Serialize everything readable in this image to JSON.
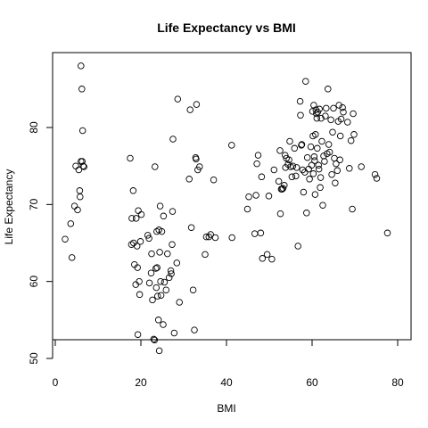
{
  "chart_data": {
    "type": "scatter",
    "title": "Life Expectancy vs  BMI",
    "xlabel": "BMI",
    "ylabel": "Life Expectancy",
    "xlim": [
      0,
      80
    ],
    "ylim": [
      50,
      90
    ],
    "xticks": [
      0,
      20,
      40,
      60,
      80
    ],
    "yticks": [
      50,
      60,
      70,
      80
    ],
    "grid": false,
    "marker": "open-circle",
    "series": [
      {
        "points": [
          [
            2.3,
            65.5
          ],
          [
            3.6,
            67.5
          ],
          [
            3.9,
            63.1
          ],
          [
            4.5,
            69.8
          ],
          [
            4.8,
            75.0
          ],
          [
            5.2,
            69.3
          ],
          [
            5.5,
            74.5
          ],
          [
            5.7,
            71.8
          ],
          [
            5.8,
            71.0
          ],
          [
            6.0,
            75.6
          ],
          [
            6.0,
            88.0
          ],
          [
            6.2,
            85.0
          ],
          [
            6.3,
            75.6
          ],
          [
            6.4,
            79.6
          ],
          [
            6.5,
            75.0
          ],
          [
            6.7,
            74.9
          ],
          [
            17.5,
            76.0
          ],
          [
            17.8,
            64.8
          ],
          [
            17.9,
            68.2
          ],
          [
            18.2,
            71.8
          ],
          [
            18.3,
            65.0
          ],
          [
            18.5,
            62.2
          ],
          [
            18.8,
            59.6
          ],
          [
            18.9,
            68.2
          ],
          [
            19.1,
            64.6
          ],
          [
            19.2,
            61.8
          ],
          [
            19.3,
            53.1
          ],
          [
            19.4,
            69.2
          ],
          [
            19.6,
            60.0
          ],
          [
            19.7,
            58.3
          ],
          [
            19.9,
            65.2
          ],
          [
            20.1,
            68.7
          ],
          [
            21.6,
            66.0
          ],
          [
            21.9,
            65.6
          ],
          [
            22.0,
            59.8
          ],
          [
            22.4,
            61.1
          ],
          [
            22.5,
            63.6
          ],
          [
            22.7,
            57.6
          ],
          [
            23.0,
            52.5
          ],
          [
            23.2,
            52.4
          ],
          [
            23.3,
            74.9
          ],
          [
            23.5,
            61.7
          ],
          [
            23.6,
            59.2
          ],
          [
            23.7,
            66.5
          ],
          [
            23.8,
            61.8
          ],
          [
            23.9,
            58.1
          ],
          [
            24.1,
            55.0
          ],
          [
            24.2,
            66.7
          ],
          [
            24.3,
            51.0
          ],
          [
            24.4,
            63.8
          ],
          [
            24.5,
            69.8
          ],
          [
            24.6,
            60.0
          ],
          [
            24.7,
            58.2
          ],
          [
            24.9,
            66.5
          ],
          [
            25.2,
            54.4
          ],
          [
            25.3,
            68.5
          ],
          [
            25.5,
            59.9
          ],
          [
            25.9,
            58.9
          ],
          [
            26.2,
            63.6
          ],
          [
            26.6,
            60.5
          ],
          [
            27.0,
            61.4
          ],
          [
            27.1,
            61.0
          ],
          [
            27.3,
            64.8
          ],
          [
            27.4,
            69.1
          ],
          [
            27.5,
            78.5
          ],
          [
            27.8,
            53.3
          ],
          [
            28.4,
            62.4
          ],
          [
            28.6,
            83.7
          ],
          [
            29.0,
            57.3
          ],
          [
            31.3,
            73.3
          ],
          [
            31.5,
            82.3
          ],
          [
            31.8,
            67.0
          ],
          [
            32.2,
            58.9
          ],
          [
            32.5,
            53.7
          ],
          [
            32.8,
            76.1
          ],
          [
            32.9,
            75.9
          ],
          [
            33.0,
            83.0
          ],
          [
            33.3,
            74.5
          ],
          [
            33.7,
            74.9
          ],
          [
            35.0,
            63.5
          ],
          [
            35.3,
            65.8
          ],
          [
            35.9,
            65.8
          ],
          [
            36.3,
            66.1
          ],
          [
            37.0,
            73.2
          ],
          [
            37.4,
            65.7
          ],
          [
            41.2,
            77.7
          ],
          [
            41.3,
            65.7
          ],
          [
            44.9,
            69.4
          ],
          [
            45.2,
            71.0
          ],
          [
            46.6,
            66.2
          ],
          [
            46.9,
            71.2
          ],
          [
            47.1,
            75.3
          ],
          [
            47.4,
            76.4
          ],
          [
            48.0,
            66.3
          ],
          [
            48.2,
            73.6
          ],
          [
            48.4,
            63.0
          ],
          [
            49.5,
            63.5
          ],
          [
            49.9,
            71.1
          ],
          [
            50.6,
            62.9
          ],
          [
            51.1,
            74.5
          ],
          [
            52.2,
            73.0
          ],
          [
            52.5,
            77.0
          ],
          [
            52.6,
            68.8
          ],
          [
            52.8,
            72.0
          ],
          [
            53.0,
            72.0
          ],
          [
            53.2,
            72.1
          ],
          [
            53.5,
            72.5
          ],
          [
            53.7,
            76.4
          ],
          [
            53.8,
            74.8
          ],
          [
            54.0,
            76.0
          ],
          [
            54.4,
            75.2
          ],
          [
            54.6,
            75.8
          ],
          [
            54.8,
            78.2
          ],
          [
            55.0,
            74.9
          ],
          [
            55.3,
            73.6
          ],
          [
            55.5,
            75.0
          ],
          [
            55.9,
            77.3
          ],
          [
            56.2,
            73.7
          ],
          [
            56.4,
            74.8
          ],
          [
            56.7,
            64.6
          ],
          [
            57.2,
            83.4
          ],
          [
            57.3,
            81.6
          ],
          [
            57.5,
            77.7
          ],
          [
            57.6,
            77.8
          ],
          [
            57.8,
            74.5
          ],
          [
            58.0,
            71.6
          ],
          [
            58.3,
            74.2
          ],
          [
            58.5,
            86.0
          ],
          [
            58.7,
            68.9
          ],
          [
            58.9,
            76.1
          ],
          [
            59.2,
            74.6
          ],
          [
            59.4,
            73.3
          ],
          [
            59.7,
            77.5
          ],
          [
            59.9,
            75.1
          ],
          [
            60.1,
            82.1
          ],
          [
            60.2,
            78.9
          ],
          [
            60.3,
            74.0
          ],
          [
            60.4,
            82.9
          ],
          [
            60.5,
            76.2
          ],
          [
            60.6,
            75.7
          ],
          [
            60.7,
            71.3
          ],
          [
            60.8,
            79.1
          ],
          [
            60.9,
            82.3
          ],
          [
            61.0,
            81.8
          ],
          [
            61.1,
            81.2
          ],
          [
            61.2,
            77.3
          ],
          [
            61.3,
            82.0
          ],
          [
            61.5,
            75.1
          ],
          [
            61.6,
            74.6
          ],
          [
            61.7,
            82.4
          ],
          [
            61.9,
            72.2
          ],
          [
            62.0,
            73.5
          ],
          [
            62.1,
            81.2
          ],
          [
            62.3,
            78.2
          ],
          [
            62.5,
            69.9
          ],
          [
            62.7,
            76.3
          ],
          [
            62.9,
            75.6
          ],
          [
            63.1,
            81.5
          ],
          [
            63.3,
            82.5
          ],
          [
            63.5,
            76.6
          ],
          [
            63.7,
            85.0
          ],
          [
            63.9,
            77.8
          ],
          [
            64.1,
            76.8
          ],
          [
            64.4,
            81.0
          ],
          [
            64.6,
            73.9
          ],
          [
            64.8,
            79.4
          ],
          [
            65.0,
            82.5
          ],
          [
            65.2,
            76.0
          ],
          [
            65.4,
            72.8
          ],
          [
            65.6,
            75.3
          ],
          [
            65.9,
            74.4
          ],
          [
            66.1,
            80.8
          ],
          [
            66.3,
            82.9
          ],
          [
            66.5,
            75.8
          ],
          [
            66.6,
            78.9
          ],
          [
            66.8,
            81.1
          ],
          [
            67.1,
            82.6
          ],
          [
            67.3,
            82.0
          ],
          [
            68.3,
            80.7
          ],
          [
            68.7,
            74.7
          ],
          [
            69.1,
            78.3
          ],
          [
            69.4,
            69.4
          ],
          [
            69.6,
            81.8
          ],
          [
            69.8,
            79.1
          ],
          [
            71.5,
            74.9
          ],
          [
            74.7,
            73.9
          ],
          [
            75.1,
            73.4
          ],
          [
            77.6,
            66.3
          ]
        ]
      }
    ]
  }
}
